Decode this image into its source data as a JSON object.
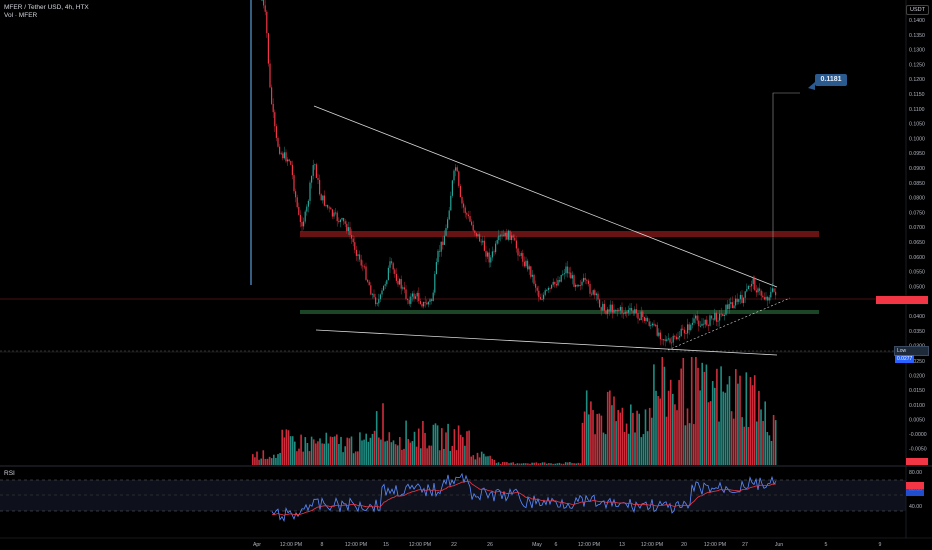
{
  "header": {
    "symbol_line": "MFER / Tether USD, 4h, HTX",
    "volume_line": "Vol · MFER"
  },
  "axis": {
    "currency": "USDT",
    "price_ticks": [
      "0.1400",
      "0.1350",
      "0.1300",
      "0.1250",
      "0.1200",
      "0.1150",
      "0.1100",
      "0.1050",
      "0.1000",
      "0.0950",
      "0.0900",
      "0.0850",
      "0.0800",
      "0.0750",
      "0.0700",
      "0.0650",
      "0.0600",
      "0.0550",
      "0.0500",
      "0.0450",
      "0.0400",
      "0.0350",
      "0.0300"
    ],
    "volume_ticks": [
      "0.0250",
      "0.0200",
      "0.0150",
      "0.0100",
      "0.0050",
      "-0.0000",
      "-0.0050"
    ],
    "rsi_ticks": [
      "80.00",
      "60.00",
      "40.00"
    ],
    "time_labels": [
      "Apr",
      "12:00 PM",
      "8",
      "12:00 PM",
      "15",
      "12:00 PM",
      "22",
      "26",
      "May",
      "6",
      "12:00 PM",
      "13",
      "12:00 PM",
      "20",
      "12:00 PM",
      "27",
      "Jun",
      "5",
      "9"
    ]
  },
  "callout": {
    "value": "0.1181"
  },
  "low_label": {
    "prefix": "Low",
    "value": "0.0277"
  },
  "rsi": {
    "title": "RSI"
  },
  "colors": {
    "up": "#26a69a",
    "down": "#f23645",
    "background": "#000000",
    "trendline": "#d9d9d9",
    "resistance_zone": "#8b1a1a",
    "support_zone": "#1f4d2b",
    "rsi_line": "#5b8cff",
    "rsi_ma": "#f23645",
    "callout": "#2b5a8f"
  }
}
